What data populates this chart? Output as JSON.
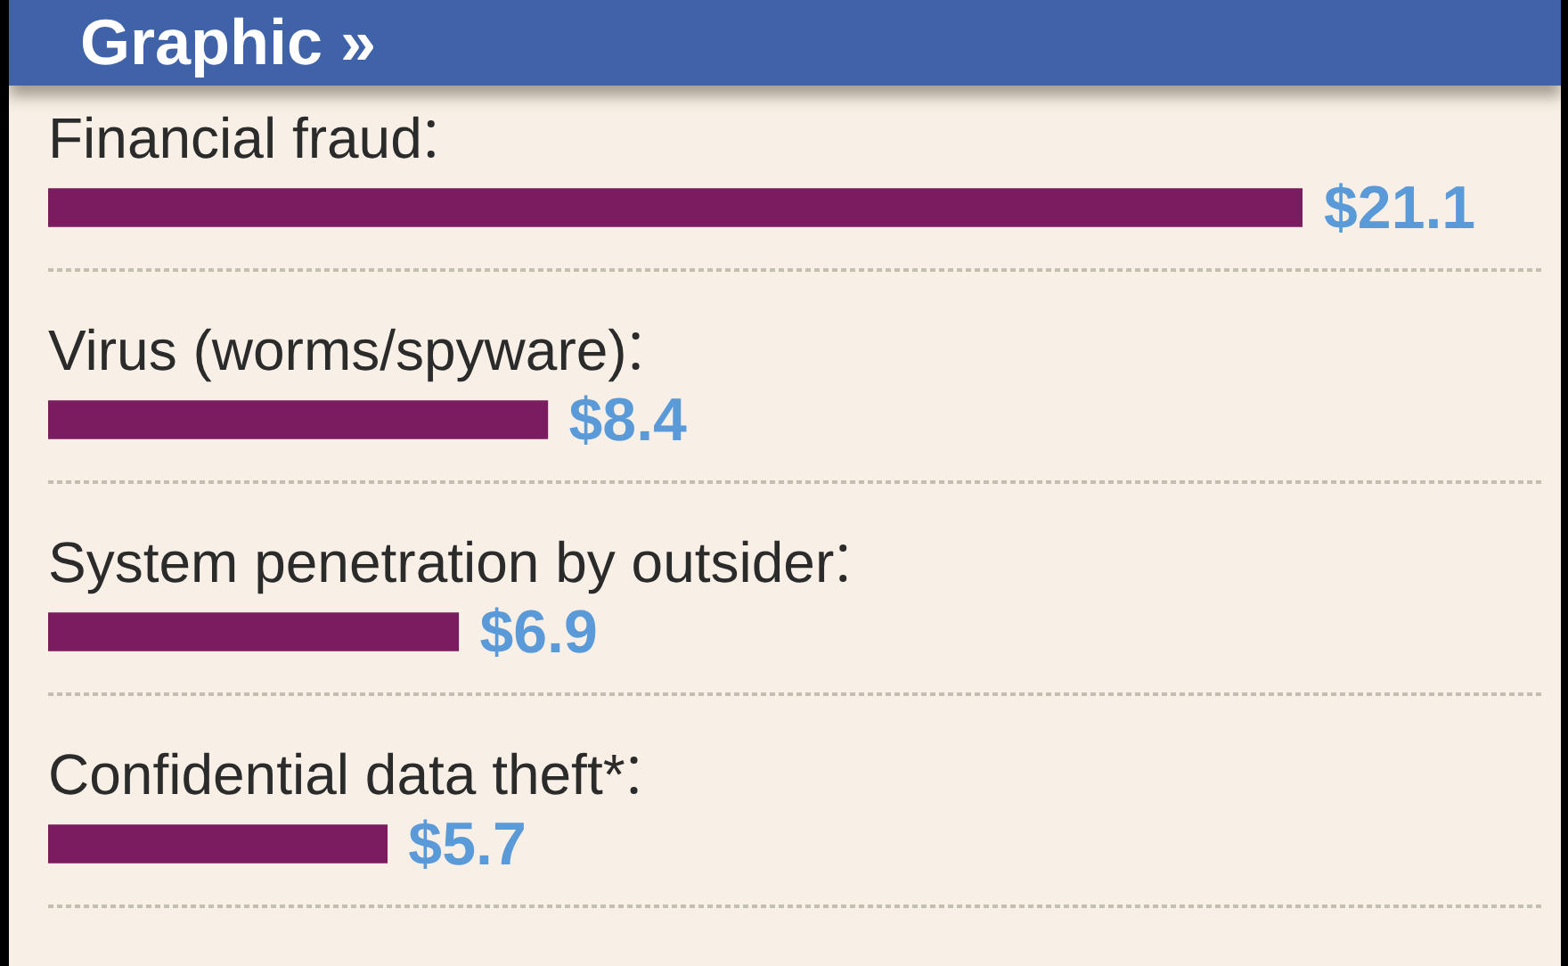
{
  "chart_data": {
    "type": "bar",
    "orientation": "horizontal",
    "title": "Graphic »",
    "categories": [
      "Financial fraud",
      "Virus (worms/spyware)",
      "System penetration by outsider",
      "Confidential data theft*"
    ],
    "values": [
      21.1,
      8.4,
      6.9,
      5.7
    ],
    "value_labels": [
      "$21.1",
      "$8.4",
      "$6.9",
      "$5.7"
    ],
    "color": "#7b1c60",
    "grid": "y"
  }
}
